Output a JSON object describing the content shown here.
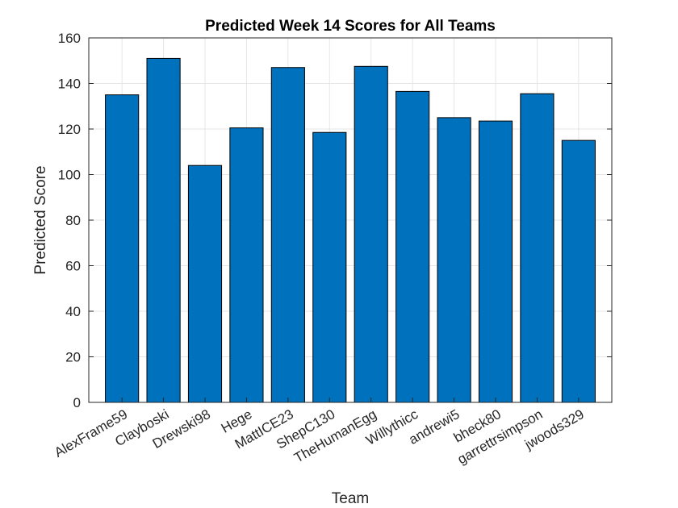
{
  "chart_data": {
    "type": "bar",
    "title": "Predicted Week 14 Scores for All Teams",
    "xlabel": "Team",
    "ylabel": "Predicted Score",
    "categories": [
      "AlexFrame59",
      "Clayboski",
      "Drewski98",
      "Hege",
      "MattICE23",
      "ShepC130",
      "TheHumanEgg",
      "Willythicc",
      "andrewi5",
      "bheck80",
      "garrettrsimpson",
      "jwoods329"
    ],
    "values": [
      135,
      151,
      104,
      120.5,
      147,
      118.5,
      147.5,
      136.5,
      125,
      123.5,
      135.5,
      115
    ],
    "ylim": [
      0,
      160
    ],
    "yticks": [
      0,
      20,
      40,
      60,
      80,
      100,
      120,
      140,
      160
    ],
    "grid": true,
    "legend": "none",
    "bar_color": "#0072BD",
    "bar_edge_color": "#000000",
    "grid_color": "#E6E6E6",
    "axis_color": "#262626"
  }
}
